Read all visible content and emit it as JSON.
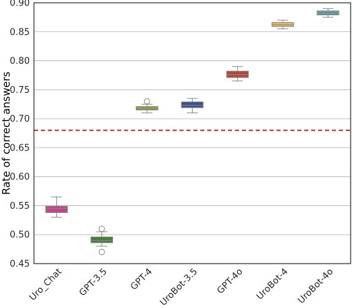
{
  "chart_data": {
    "type": "box",
    "ylabel": "Rate of correct answers",
    "xlabel": "",
    "ylim": [
      0.45,
      0.9
    ],
    "yticks": [
      0.45,
      0.5,
      0.55,
      0.6,
      0.65,
      0.7,
      0.75,
      0.8,
      0.85,
      0.9
    ],
    "ytick_labels": [
      "0.45",
      "0.50",
      "0.55",
      "0.60",
      "0.65",
      "0.70",
      "0.75",
      "0.80",
      "0.85",
      "0.90"
    ],
    "grid": true,
    "reference_line": {
      "y": 0.68,
      "color": "#d62728",
      "style": "dashed"
    },
    "categories": [
      "Uro_Chat",
      "GPT-3.5",
      "GPT-4",
      "UroBot-3.5",
      "GPT-4o",
      "UroBot-4",
      "UroBot-4o"
    ],
    "boxes": [
      {
        "category": "Uro_Chat",
        "whisker_low": 0.53,
        "q1": 0.538,
        "median": 0.545,
        "q3": 0.549,
        "whisker_high": 0.565,
        "outliers": [],
        "color": "#c2448a"
      },
      {
        "category": "GPT-3.5",
        "whisker_low": 0.48,
        "q1": 0.486,
        "median": 0.49,
        "q3": 0.496,
        "whisker_high": 0.505,
        "outliers": [
          0.47,
          0.51
        ],
        "color": "#4a7d3d"
      },
      {
        "category": "GPT-4",
        "whisker_low": 0.71,
        "q1": 0.715,
        "median": 0.717,
        "q3": 0.721,
        "whisker_high": 0.725,
        "outliers": [
          0.73
        ],
        "color": "#8fa13f"
      },
      {
        "category": "UroBot-3.5",
        "whisker_low": 0.71,
        "q1": 0.719,
        "median": 0.723,
        "q3": 0.729,
        "whisker_high": 0.735,
        "outliers": [],
        "color": "#3a4f8e"
      },
      {
        "category": "GPT-4o",
        "whisker_low": 0.765,
        "q1": 0.771,
        "median": 0.776,
        "q3": 0.782,
        "whisker_high": 0.79,
        "outliers": [],
        "color": "#b3483a"
      },
      {
        "category": "UroBot-4",
        "whisker_low": 0.855,
        "q1": 0.859,
        "median": 0.862,
        "q3": 0.866,
        "whisker_high": 0.87,
        "outliers": [],
        "color": "#e3b75a"
      },
      {
        "category": "UroBot-4o",
        "whisker_low": 0.875,
        "q1": 0.879,
        "median": 0.882,
        "q3": 0.886,
        "whisker_high": 0.89,
        "outliers": [],
        "color": "#5b9d9d"
      }
    ]
  }
}
